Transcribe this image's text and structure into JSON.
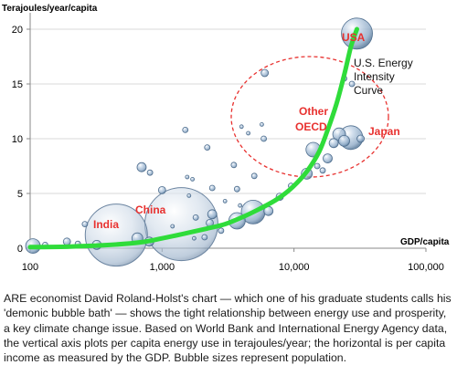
{
  "chart_data": {
    "type": "scatter",
    "subtype": "bubble",
    "ylabel": "Terajoules/year/capita",
    "xlabel": "GDP/capita",
    "x_scale": "log",
    "xlim": [
      100,
      100000
    ],
    "ylim": [
      0,
      21
    ],
    "x_ticks": [
      100,
      1000,
      10000,
      100000
    ],
    "x_tick_labels": [
      "100",
      "1,000",
      "10,000",
      "100,000"
    ],
    "y_ticks": [
      0,
      5,
      10,
      15,
      20
    ],
    "y_tick_labels": [
      "0",
      "5",
      "10",
      "15",
      "20"
    ],
    "grid": "horizontal",
    "colors": {
      "bubble": "#a9bfd6",
      "curve": "#2fdc3a",
      "annotation_red": "#e8312f"
    },
    "labels": {
      "usa": "USA",
      "india": "India",
      "china": "China",
      "japan": "Japan",
      "other_oecd_line1": "Other",
      "other_oecd_line2": "OECD",
      "curve_line1": "U.S. Energy",
      "curve_line2": "Intensity",
      "curve_line3": "Curve"
    },
    "bubbles": [
      {
        "x": 30000,
        "y": 19.6,
        "r": 17,
        "label": "USA"
      },
      {
        "x": 1400,
        "y": 2.2,
        "r": 40,
        "label": "China"
      },
      {
        "x": 450,
        "y": 1.2,
        "r": 34,
        "label": "India"
      },
      {
        "x": 27000,
        "y": 10.1,
        "r": 13,
        "label": "Japan"
      },
      {
        "x": 22000,
        "y": 10.4,
        "r": 7
      },
      {
        "x": 24000,
        "y": 9.8,
        "r": 6
      },
      {
        "x": 20000,
        "y": 9.6,
        "r": 5
      },
      {
        "x": 18000,
        "y": 8.2,
        "r": 5
      },
      {
        "x": 32000,
        "y": 10.0,
        "r": 4
      },
      {
        "x": 14000,
        "y": 9.0,
        "r": 8
      },
      {
        "x": 12500,
        "y": 6.8,
        "r": 6
      },
      {
        "x": 15000,
        "y": 7.5,
        "r": 3
      },
      {
        "x": 16500,
        "y": 7.1,
        "r": 3
      },
      {
        "x": 24000,
        "y": 15.5,
        "r": 3
      },
      {
        "x": 27500,
        "y": 15.0,
        "r": 3
      },
      {
        "x": 6000,
        "y": 16.0,
        "r": 4
      },
      {
        "x": 5900,
        "y": 10.0,
        "r": 3
      },
      {
        "x": 2200,
        "y": 9.2,
        "r": 3
      },
      {
        "x": 1500,
        "y": 10.8,
        "r": 3
      },
      {
        "x": 4000,
        "y": 11.1,
        "r": 2
      },
      {
        "x": 5700,
        "y": 11.3,
        "r": 2
      },
      {
        "x": 4900,
        "y": 3.3,
        "r": 13
      },
      {
        "x": 3700,
        "y": 2.5,
        "r": 9
      },
      {
        "x": 6400,
        "y": 3.4,
        "r": 5
      },
      {
        "x": 7800,
        "y": 4.7,
        "r": 4
      },
      {
        "x": 9500,
        "y": 5.7,
        "r": 3
      },
      {
        "x": 5000,
        "y": 6.6,
        "r": 3
      },
      {
        "x": 3700,
        "y": 5.4,
        "r": 3
      },
      {
        "x": 2400,
        "y": 5.5,
        "r": 3
      },
      {
        "x": 1700,
        "y": 6.3,
        "r": 2
      },
      {
        "x": 1550,
        "y": 6.5,
        "r": 2
      },
      {
        "x": 260,
        "y": 2.2,
        "r": 3
      },
      {
        "x": 2400,
        "y": 3.1,
        "r": 5
      },
      {
        "x": 2300,
        "y": 2.3,
        "r": 4
      },
      {
        "x": 3000,
        "y": 4.3,
        "r": 2
      },
      {
        "x": 3900,
        "y": 3.9,
        "r": 2
      },
      {
        "x": 1000,
        "y": 5.3,
        "r": 4
      },
      {
        "x": 700,
        "y": 7.4,
        "r": 5
      },
      {
        "x": 810,
        "y": 6.9,
        "r": 3
      },
      {
        "x": 2100,
        "y": 1.0,
        "r": 3
      },
      {
        "x": 2800,
        "y": 1.6,
        "r": 3
      },
      {
        "x": 1750,
        "y": 0.9,
        "r": 2
      },
      {
        "x": 650,
        "y": 0.9,
        "r": 6
      },
      {
        "x": 130,
        "y": 0.3,
        "r": 3
      },
      {
        "x": 190,
        "y": 0.6,
        "r": 4
      },
      {
        "x": 230,
        "y": 0.4,
        "r": 3
      },
      {
        "x": 320,
        "y": 0.3,
        "r": 5
      },
      {
        "x": 800,
        "y": 0.6,
        "r": 5
      },
      {
        "x": 105,
        "y": 0.2,
        "r": 8
      },
      {
        "x": 1200,
        "y": 2.0,
        "r": 2
      },
      {
        "x": 4500,
        "y": 10.5,
        "r": 2
      },
      {
        "x": 3500,
        "y": 7.6,
        "r": 3
      },
      {
        "x": 1800,
        "y": 2.8,
        "r": 3
      },
      {
        "x": 1600,
        "y": 4.8,
        "r": 2
      }
    ],
    "curve": [
      [
        100,
        0.1
      ],
      [
        200,
        0.15
      ],
      [
        400,
        0.3
      ],
      [
        700,
        0.55
      ],
      [
        1000,
        0.9
      ],
      [
        1500,
        1.35
      ],
      [
        2200,
        1.8
      ],
      [
        3000,
        2.2
      ],
      [
        4000,
        2.8
      ],
      [
        5500,
        3.6
      ],
      [
        7500,
        4.5
      ],
      [
        9800,
        5.6
      ],
      [
        12500,
        7.0
      ],
      [
        15500,
        8.8
      ],
      [
        18000,
        10.8
      ],
      [
        21000,
        13.2
      ],
      [
        24000,
        15.8
      ],
      [
        27000,
        18.4
      ],
      [
        30000,
        20.0
      ]
    ]
  },
  "caption": "ARE economist David Roland-Holst's chart — which one of his graduate students calls his 'demonic bubble bath' — shows the tight relationship between energy use and prosperity, a key climate change issue. Based on World Bank and International Energy Agency data, the vertical axis plots per capita energy use in terajoules/year; the horizontal is per capita income as measured by the GDP. Bubble sizes represent population."
}
